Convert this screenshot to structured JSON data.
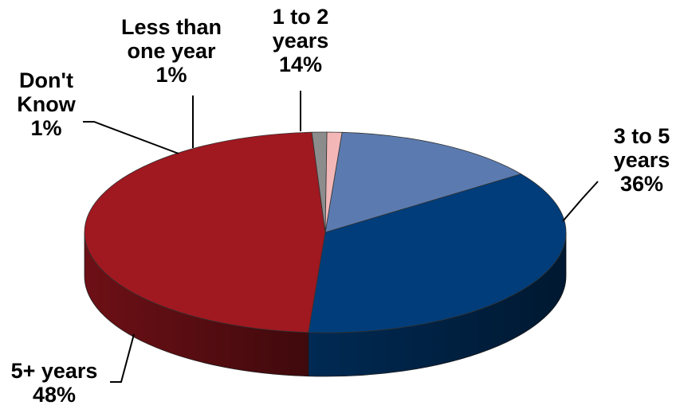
{
  "chart_data": {
    "type": "pie",
    "style": "3d-tilted",
    "title": "",
    "series": [
      {
        "label_lines": [
          "1 to 2",
          "years"
        ],
        "percent_label": "14%",
        "value": 14,
        "color": "#5b7bb0"
      },
      {
        "label_lines": [
          "3 to 5",
          "years"
        ],
        "percent_label": "36%",
        "value": 36,
        "color": "#003d7a"
      },
      {
        "label_lines": [
          "5+ years"
        ],
        "percent_label": "48%",
        "value": 48,
        "color": "#a01820"
      },
      {
        "label_lines": [
          "Don't",
          "Know"
        ],
        "percent_label": "1%",
        "value": 1,
        "color": "#8c8c8c"
      },
      {
        "label_lines": [
          "Less than",
          "one year"
        ],
        "percent_label": "1%",
        "value": 1,
        "color": "#f3b7b7"
      }
    ],
    "legend": "none"
  }
}
